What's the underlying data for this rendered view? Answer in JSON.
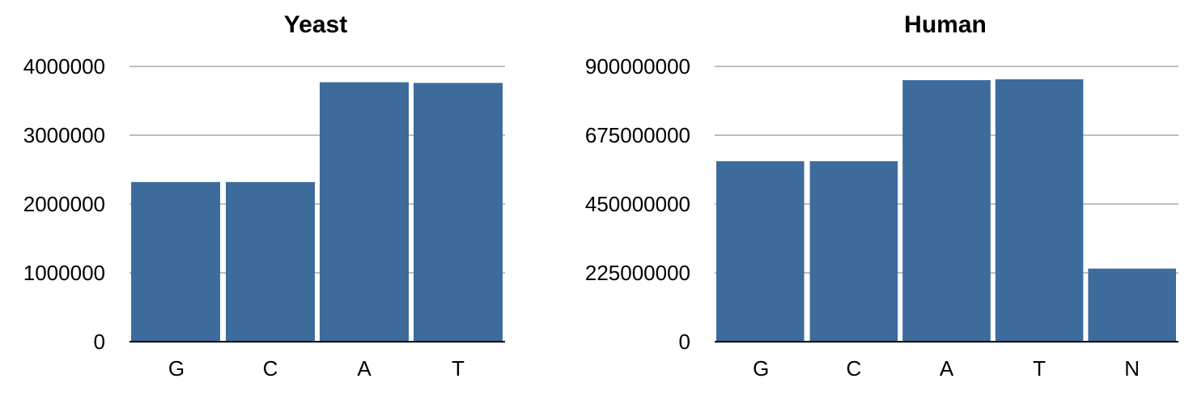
{
  "chart_data": [
    {
      "type": "bar",
      "title": "Yeast",
      "xlabel": "",
      "ylabel": "",
      "categories": [
        "G",
        "C",
        "A",
        "T"
      ],
      "values": [
        2320000,
        2320000,
        3770000,
        3760000
      ],
      "yticks": [
        "0",
        "1000000",
        "2000000",
        "3000000",
        "4000000"
      ],
      "ylim": [
        0,
        4000000
      ],
      "grid": true,
      "bar_color": "#3d6b9b"
    },
    {
      "type": "bar",
      "title": "Human",
      "xlabel": "",
      "ylabel": "",
      "categories": [
        "G",
        "C",
        "A",
        "T",
        "N"
      ],
      "values": [
        590000000,
        590000000,
        855000000,
        858000000,
        239000000
      ],
      "yticks": [
        "0",
        "225000000",
        "450000000",
        "675000000",
        "900000000"
      ],
      "ylim": [
        0,
        900000000
      ],
      "grid": true,
      "bar_color": "#3d6b9b"
    }
  ]
}
